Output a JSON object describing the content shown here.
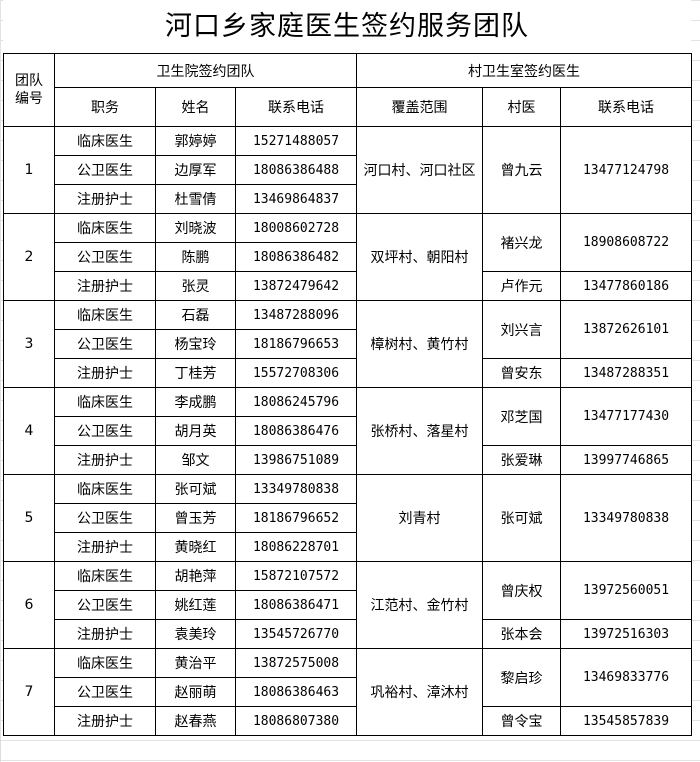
{
  "title": "河口乡家庭医生签约服务团队",
  "headers": {
    "team_no": "团队编号",
    "hospital_group": "卫生院签约团队",
    "village_group": "村卫生室签约医生",
    "role": "职务",
    "name": "姓名",
    "phone": "联系电话",
    "coverage": "覆盖范围",
    "village_doctor": "村医",
    "village_phone": "联系电话"
  },
  "teams": [
    {
      "no": "1",
      "coverage": "河口村、河口社区",
      "members": [
        {
          "role": "临床医生",
          "name": "郭婷婷",
          "phone": "15271488057"
        },
        {
          "role": "公卫医生",
          "name": "边厚军",
          "phone": "18086386488"
        },
        {
          "role": "注册护士",
          "name": "杜雪倩",
          "phone": "13469864837"
        }
      ],
      "village_doctors": [
        {
          "name": "曾九云",
          "phone": "13477124798"
        }
      ]
    },
    {
      "no": "2",
      "coverage": "双坪村、朝阳村",
      "members": [
        {
          "role": "临床医生",
          "name": "刘晓波",
          "phone": "18008602728"
        },
        {
          "role": "公卫医生",
          "name": "陈鹏",
          "phone": "18086386482"
        },
        {
          "role": "注册护士",
          "name": "张灵",
          "phone": "13872479642"
        }
      ],
      "village_doctors": [
        {
          "name": "褚兴龙",
          "phone": "18908608722"
        },
        {
          "name": "卢作元",
          "phone": "13477860186"
        }
      ]
    },
    {
      "no": "3",
      "coverage": "樟树村、黄竹村",
      "members": [
        {
          "role": "临床医生",
          "name": "石磊",
          "phone": "13487288096"
        },
        {
          "role": "公卫医生",
          "name": "杨宝玲",
          "phone": "18186796653"
        },
        {
          "role": "注册护士",
          "name": "丁桂芳",
          "phone": "15572708306"
        }
      ],
      "village_doctors": [
        {
          "name": "刘兴言",
          "phone": "13872626101"
        },
        {
          "name": "曾安东",
          "phone": "13487288351"
        }
      ]
    },
    {
      "no": "4",
      "coverage": "张桥村、落星村",
      "members": [
        {
          "role": "临床医生",
          "name": "李成鹏",
          "phone": "18086245796"
        },
        {
          "role": "公卫医生",
          "name": "胡月英",
          "phone": "18086386476"
        },
        {
          "role": "注册护士",
          "name": "邹文",
          "phone": "13986751089"
        }
      ],
      "village_doctors": [
        {
          "name": "邓芝国",
          "phone": "13477177430"
        },
        {
          "name": "张爱琳",
          "phone": "13997746865"
        }
      ]
    },
    {
      "no": "5",
      "coverage": "刘青村",
      "members": [
        {
          "role": "临床医生",
          "name": "张可斌",
          "phone": "13349780838"
        },
        {
          "role": "公卫医生",
          "name": "曾玉芳",
          "phone": "18186796652"
        },
        {
          "role": "注册护士",
          "name": "黄晓红",
          "phone": "18086228701"
        }
      ],
      "village_doctors": [
        {
          "name": "张可斌",
          "phone": "13349780838"
        }
      ]
    },
    {
      "no": "6",
      "coverage": "江范村、金竹村",
      "members": [
        {
          "role": "临床医生",
          "name": "胡艳萍",
          "phone": "15872107572"
        },
        {
          "role": "公卫医生",
          "name": "姚红莲",
          "phone": "18086386471"
        },
        {
          "role": "注册护士",
          "name": "袁美玲",
          "phone": "13545726770"
        }
      ],
      "village_doctors": [
        {
          "name": "曾庆权",
          "phone": "13972560051"
        },
        {
          "name": "张本会",
          "phone": "13972516303"
        }
      ]
    },
    {
      "no": "7",
      "coverage": "巩裕村、漳沐村",
      "members": [
        {
          "role": "临床医生",
          "name": "黄治平",
          "phone": "13872575008"
        },
        {
          "role": "公卫医生",
          "name": "赵丽萌",
          "phone": "18086386463"
        },
        {
          "role": "注册护士",
          "name": "赵春燕",
          "phone": "18086807380"
        }
      ],
      "village_doctors": [
        {
          "name": "黎启珍",
          "phone": "13469833776"
        },
        {
          "name": "曾令宝",
          "phone": "13545857839"
        }
      ]
    }
  ]
}
